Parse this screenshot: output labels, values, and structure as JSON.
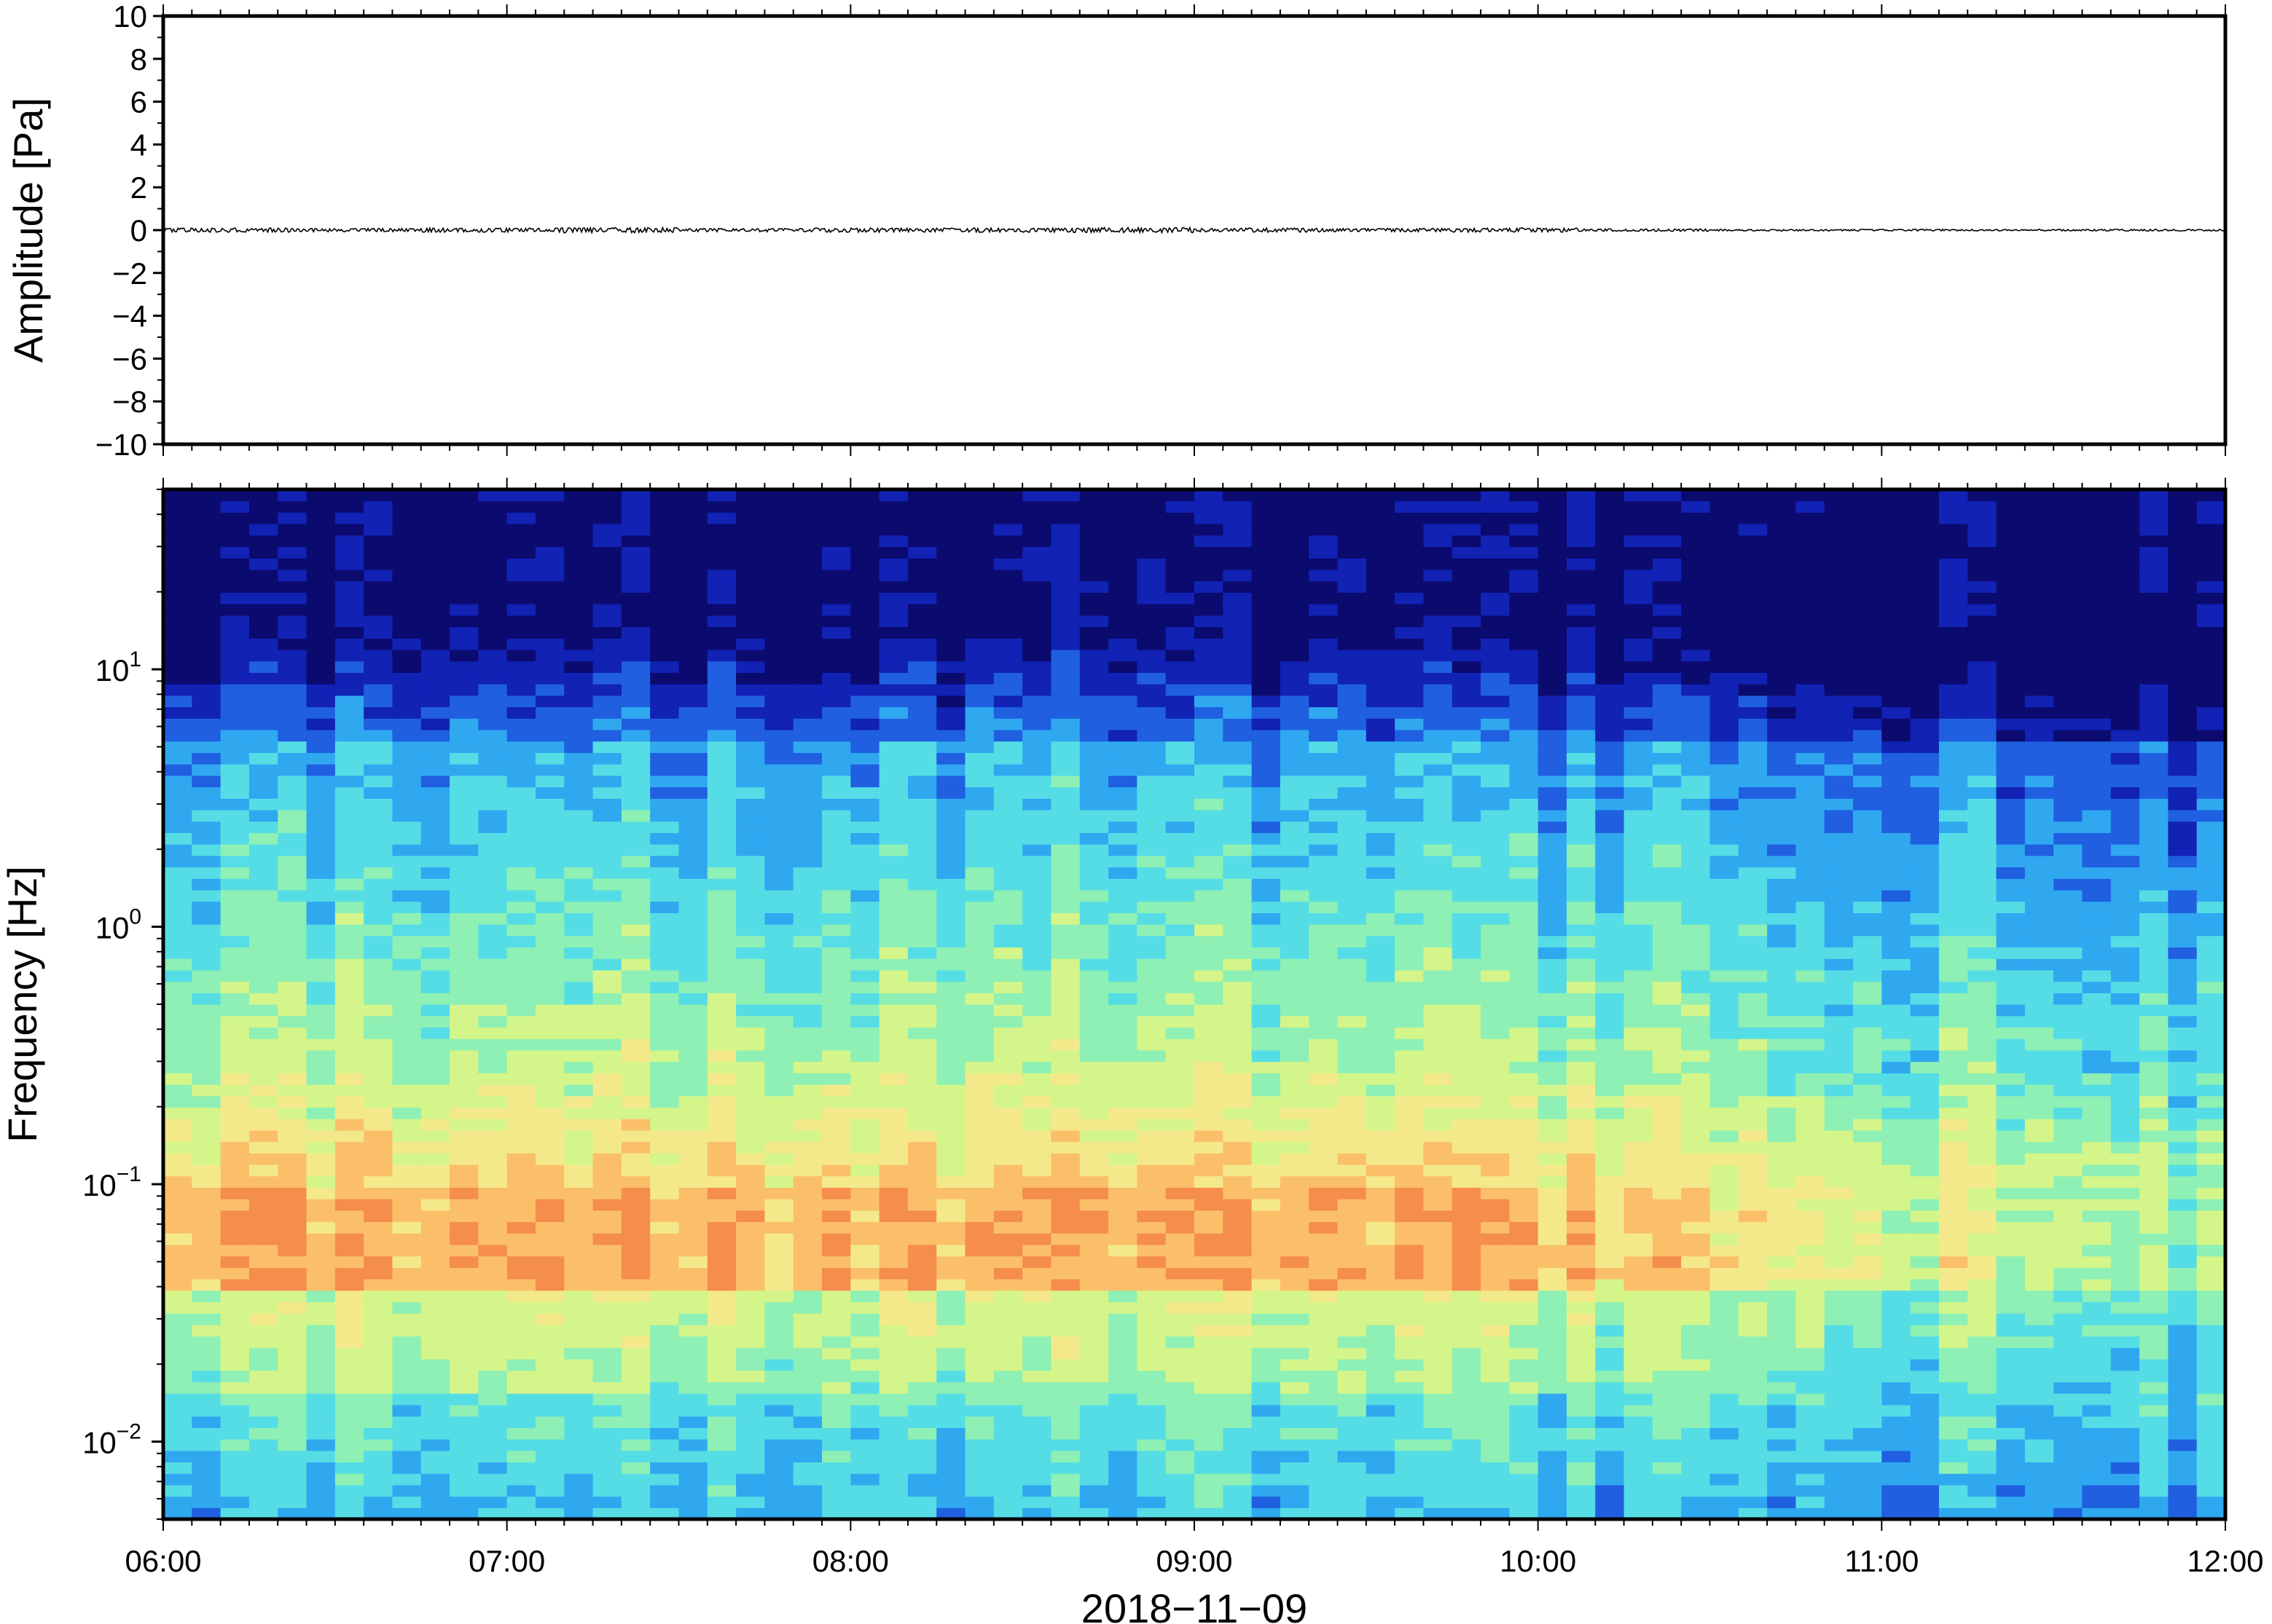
{
  "chart_data": [
    {
      "type": "line",
      "ylabel": "Amplitude [Pa]",
      "ylim": [
        -10,
        10
      ],
      "yticks": [
        "10",
        "8",
        "6",
        "4",
        "2",
        "0",
        "−2",
        "−4",
        "−6",
        "−8",
        "−10"
      ],
      "xlim": [
        "06:00",
        "12:00"
      ],
      "grid": false,
      "trace_description_level": 0,
      "series": [
        {
          "values": [
            0.05,
            0.04,
            0.05,
            0.06,
            0.04,
            0.05,
            0.05,
            0.06,
            0.05,
            0.04,
            0.05,
            0.03,
            0.02,
            0.02,
            0.02,
            0.02
          ]
        }
      ]
    },
    {
      "type": "heatmap",
      "ylabel": "Frequency [Hz]",
      "xlabel": "2018−11−09",
      "xlim": [
        "06:00",
        "12:00"
      ],
      "ylim": [
        0.005,
        50
      ],
      "yscale": "log",
      "yticks": [
        {
          "base": "10",
          "exp": "1"
        },
        {
          "base": "10",
          "exp": "0"
        },
        {
          "base": "10",
          "exp": "−1"
        },
        {
          "base": "10",
          "exp": "−2"
        }
      ],
      "xticks": [
        "06:00",
        "07:00",
        "08:00",
        "09:00",
        "10:00",
        "11:00",
        "12:00"
      ],
      "colormap": [
        "#0b0a6e",
        "#1122b5",
        "#1f5fe0",
        "#2fa8f0",
        "#55dde6",
        "#8ef0b4",
        "#d4f58a",
        "#f4e98a",
        "#fbbf6a",
        "#f58d4c",
        "#e0503a"
      ],
      "grid": false
    }
  ]
}
